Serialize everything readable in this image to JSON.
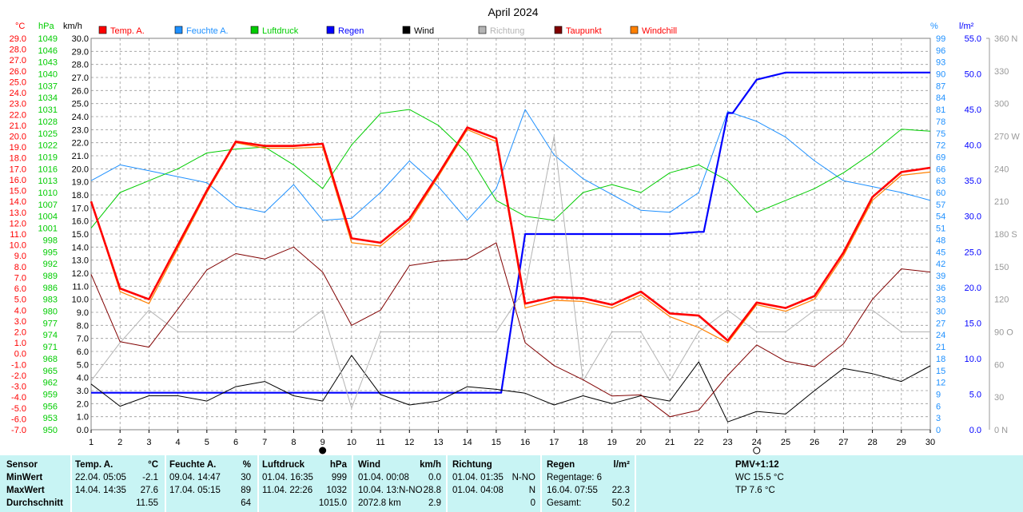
{
  "chart_data": {
    "type": "line",
    "title": "April 2024",
    "x": [
      1,
      2,
      3,
      4,
      5,
      6,
      7,
      8,
      9,
      10,
      11,
      12,
      13,
      14,
      15,
      16,
      17,
      18,
      19,
      20,
      21,
      22,
      23,
      24,
      25,
      26,
      27,
      28,
      29,
      30
    ],
    "xlim": [
      1,
      30
    ],
    "grid": true,
    "legend_position": "top",
    "axes": {
      "temp": {
        "unit": "°C",
        "range": [
          -7.0,
          29.0
        ],
        "step": 1.0,
        "color": "#ff0000"
      },
      "pressure": {
        "unit": "hPa",
        "range": [
          950,
          1049
        ],
        "step": 3,
        "color": "#00cc00"
      },
      "wind": {
        "unit": "km/h",
        "range": [
          0.0,
          30.0
        ],
        "step": 1.0,
        "color": "#000000"
      },
      "humidity": {
        "unit": "%",
        "range": [
          0,
          99
        ],
        "step": 3,
        "color": "#1e90ff"
      },
      "rain": {
        "unit": "l/m²",
        "range": [
          0.0,
          55.0
        ],
        "step": 5.0,
        "color": "#0000ff"
      },
      "direction": {
        "unit": "",
        "range": [
          0,
          360
        ],
        "step": 30,
        "color": "#999999",
        "labels": {
          "0": "0 N",
          "90": "90 O",
          "180": "180 S",
          "270": "270 W",
          "360": "360 N"
        }
      }
    },
    "series": [
      {
        "name": "Temp. A.",
        "axis": "temp",
        "color": "#ff0000",
        "width": 2.6,
        "values": [
          14.0,
          6.0,
          5.0,
          10.0,
          15.0,
          19.5,
          19.1,
          19.1,
          19.3,
          10.6,
          10.2,
          12.4,
          16.5,
          20.8,
          19.8,
          4.6,
          5.2,
          5.1,
          4.5,
          5.7,
          3.7,
          3.5,
          1.2,
          4.7,
          4.2,
          5.3,
          9.3,
          14.4,
          16.7,
          17.1
        ]
      },
      {
        "name": "Feuchte A.",
        "axis": "humidity",
        "color": "#1e90ff",
        "width": 1,
        "values": [
          63,
          67,
          65.5,
          64,
          62.5,
          56.5,
          55,
          62,
          53,
          53.5,
          60,
          68,
          61.5,
          53,
          61,
          81,
          69.5,
          63.5,
          59.5,
          55.5,
          55,
          60,
          80.5,
          78,
          74,
          68,
          63,
          61.5,
          60,
          58
        ]
      },
      {
        "name": "Luftdruck",
        "axis": "pressure",
        "color": "#00cc00",
        "width": 1,
        "values": [
          1001,
          1010,
          1013,
          1016,
          1020,
          1021,
          1021.5,
          1017,
          1011,
          1022,
          1030,
          1031,
          1027,
          1020,
          1008,
          1004,
          1003,
          1010,
          1012,
          1010,
          1015,
          1017,
          1013,
          1005,
          1008,
          1011,
          1015,
          1020,
          1026,
          1025.5
        ]
      },
      {
        "name": "Regen",
        "axis": "rain",
        "color": "#0000ff",
        "width": 2.2,
        "step": true,
        "values": [
          5.2,
          5.2,
          5.2,
          5.2,
          5.2,
          5.2,
          5.2,
          5.2,
          5.2,
          5.2,
          5.2,
          5.2,
          5.2,
          5.2,
          5.2,
          27.5,
          27.5,
          27.5,
          27.5,
          27.5,
          27.5,
          27.8,
          44.5,
          49.2,
          50.2,
          50.2,
          50.2,
          50.2,
          50.2,
          50.2
        ]
      },
      {
        "name": "Wind",
        "axis": "wind",
        "color": "#000000",
        "width": 1,
        "values": [
          3.5,
          1.8,
          2.6,
          2.6,
          2.2,
          3.3,
          3.7,
          2.6,
          2.2,
          5.7,
          2.7,
          1.9,
          2.2,
          3.3,
          3.1,
          2.8,
          1.9,
          2.6,
          2.0,
          2.6,
          2.2,
          5.2,
          0.6,
          1.4,
          1.2,
          3.0,
          4.7,
          4.3,
          3.7,
          4.9
        ]
      },
      {
        "name": "Richtung",
        "axis": "direction",
        "color": "#b4b4b4",
        "width": 1,
        "values": [
          45,
          80,
          110,
          90,
          90,
          90,
          90,
          90,
          110,
          20,
          90,
          90,
          90,
          90,
          90,
          130,
          270,
          45,
          90,
          90,
          45,
          90,
          110,
          90,
          90,
          110,
          110,
          110,
          90,
          90
        ]
      },
      {
        "name": "Taupunkt",
        "axis": "temp",
        "color": "#800000",
        "width": 1,
        "values": [
          7.3,
          1.1,
          0.6,
          4.1,
          7.7,
          9.2,
          8.7,
          9.8,
          7.5,
          2.6,
          4.0,
          8.1,
          8.5,
          8.7,
          10.2,
          1.0,
          -1.1,
          -2.4,
          -3.9,
          -3.8,
          -5.8,
          -5.2,
          -2.0,
          0.8,
          -0.7,
          -1.2,
          0.9,
          5.0,
          7.8,
          7.5
        ]
      },
      {
        "name": "Windchill",
        "axis": "temp",
        "color": "#ff8000",
        "width": 1.2,
        "values": [
          14.0,
          5.7,
          4.6,
          9.7,
          14.8,
          19.4,
          18.9,
          18.9,
          19.0,
          10.2,
          9.9,
          12.1,
          16.3,
          20.6,
          19.5,
          4.2,
          4.9,
          4.8,
          4.2,
          5.4,
          3.4,
          2.4,
          1.0,
          4.5,
          3.9,
          5.0,
          9.0,
          14.1,
          16.4,
          16.7
        ]
      }
    ],
    "moon_phases": [
      {
        "day": 9,
        "phase": "new"
      },
      {
        "day": 24,
        "phase": "full"
      }
    ]
  },
  "stats": {
    "headers": {
      "sensor": "Sensor",
      "temp": "Temp. A.",
      "temp_unit": "°C",
      "humidity": "Feuchte A.",
      "humidity_unit": "%",
      "pressure": "Luftdruck",
      "pressure_unit": "hPa",
      "wind": "Wind",
      "wind_unit": "km/h",
      "direction": "Richtung",
      "rain": "Regen",
      "rain_unit": "l/m²",
      "pmv": "PMV+1:12"
    },
    "row_labels": {
      "min": "MinWert",
      "max": "MaxWert",
      "avg": "Durchschnitt"
    },
    "temp": {
      "min_time": "22.04.  05:05",
      "min_val": "-2.1",
      "max_time": "14.04.  14:35",
      "max_val": "27.6",
      "avg": "11.55"
    },
    "humidity": {
      "min_time": "09.04.  14:47",
      "min_val": "30",
      "max_time": "17.04.  05:15",
      "max_val": "89",
      "avg": "64"
    },
    "pressure": {
      "min_time": "01.04.  16:35",
      "min_val": "999",
      "max_time": "11.04.  22:26",
      "max_val": "1032",
      "avg": "1015.0"
    },
    "wind": {
      "min_time": "01.04.  00:08",
      "min_val": "0.0",
      "max_time": "10.04.  13:N-NO",
      "max_val": "28.8",
      "avg_text": "2072.8 km",
      "avg": "2.9"
    },
    "direction": {
      "min_time": "01.04.  01:35",
      "min_val": "N-NO",
      "max_time": "01.04.  04:08",
      "max_val": "N",
      "avg": "0"
    },
    "rain": {
      "min_text": "Regentage: 6",
      "max_time": "16.04.  07:55",
      "max_val": "22.3",
      "avg_label": "Gesamt:",
      "avg": "50.2"
    },
    "pmv": {
      "wc": "WC 15.5 °C",
      "tp": "TP 7.6 °C"
    }
  }
}
